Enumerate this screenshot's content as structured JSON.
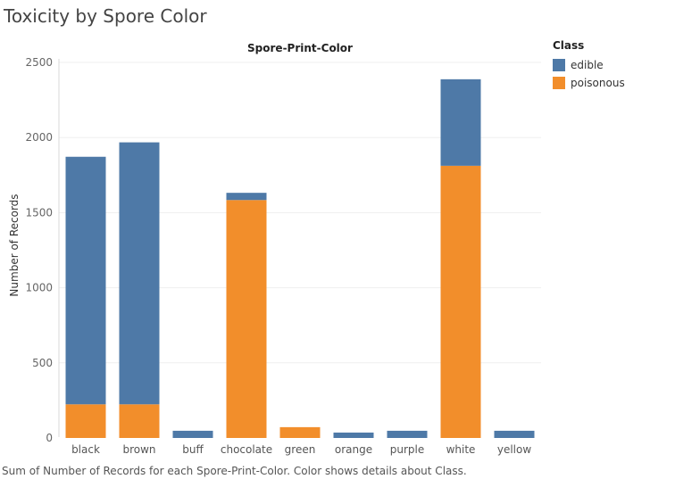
{
  "page": {
    "title": "Toxicity by Spore Color"
  },
  "caption": "Sum of Number of Records for each Spore-Print-Color.  Color shows details about Class.",
  "legend": {
    "title": "Class",
    "items": [
      {
        "label": "edible",
        "color": "#4e79a7"
      },
      {
        "label": "poisonous",
        "color": "#f28e2b"
      }
    ]
  },
  "chart_data": {
    "type": "bar",
    "stacked": true,
    "column_header": "Spore-Print-Color",
    "ylabel": "Number of Records",
    "ylim": [
      0,
      2500
    ],
    "yticks": [
      0,
      500,
      1000,
      1500,
      2000,
      2500
    ],
    "grid": true,
    "legend_position": "top-right",
    "categories": [
      "black",
      "brown",
      "buff",
      "chocolate",
      "green",
      "orange",
      "purple",
      "white",
      "yellow"
    ],
    "series": [
      {
        "name": "poisonous",
        "color": "#f28e2b",
        "values": [
          224,
          224,
          0,
          1584,
          72,
          0,
          0,
          1812,
          0
        ]
      },
      {
        "name": "edible",
        "color": "#4e79a7",
        "values": [
          1648,
          1744,
          48,
          48,
          0,
          36,
          48,
          576,
          48
        ]
      }
    ]
  }
}
